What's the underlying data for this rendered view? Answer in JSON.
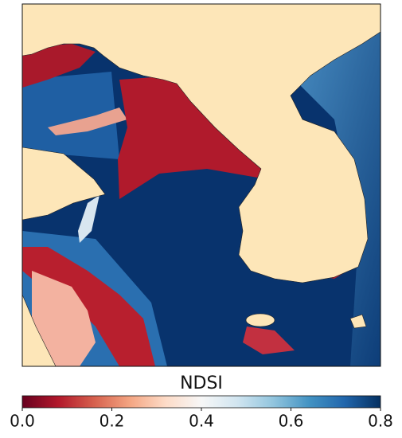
{
  "colorbar": {
    "title": "NDSI",
    "lim": [
      0,
      0.8
    ],
    "ticks": [
      {
        "value": 0,
        "label": "0.0"
      },
      0.2,
      0.4,
      0.6,
      0.8
    ],
    "colormap": "RdBu"
  }
}
